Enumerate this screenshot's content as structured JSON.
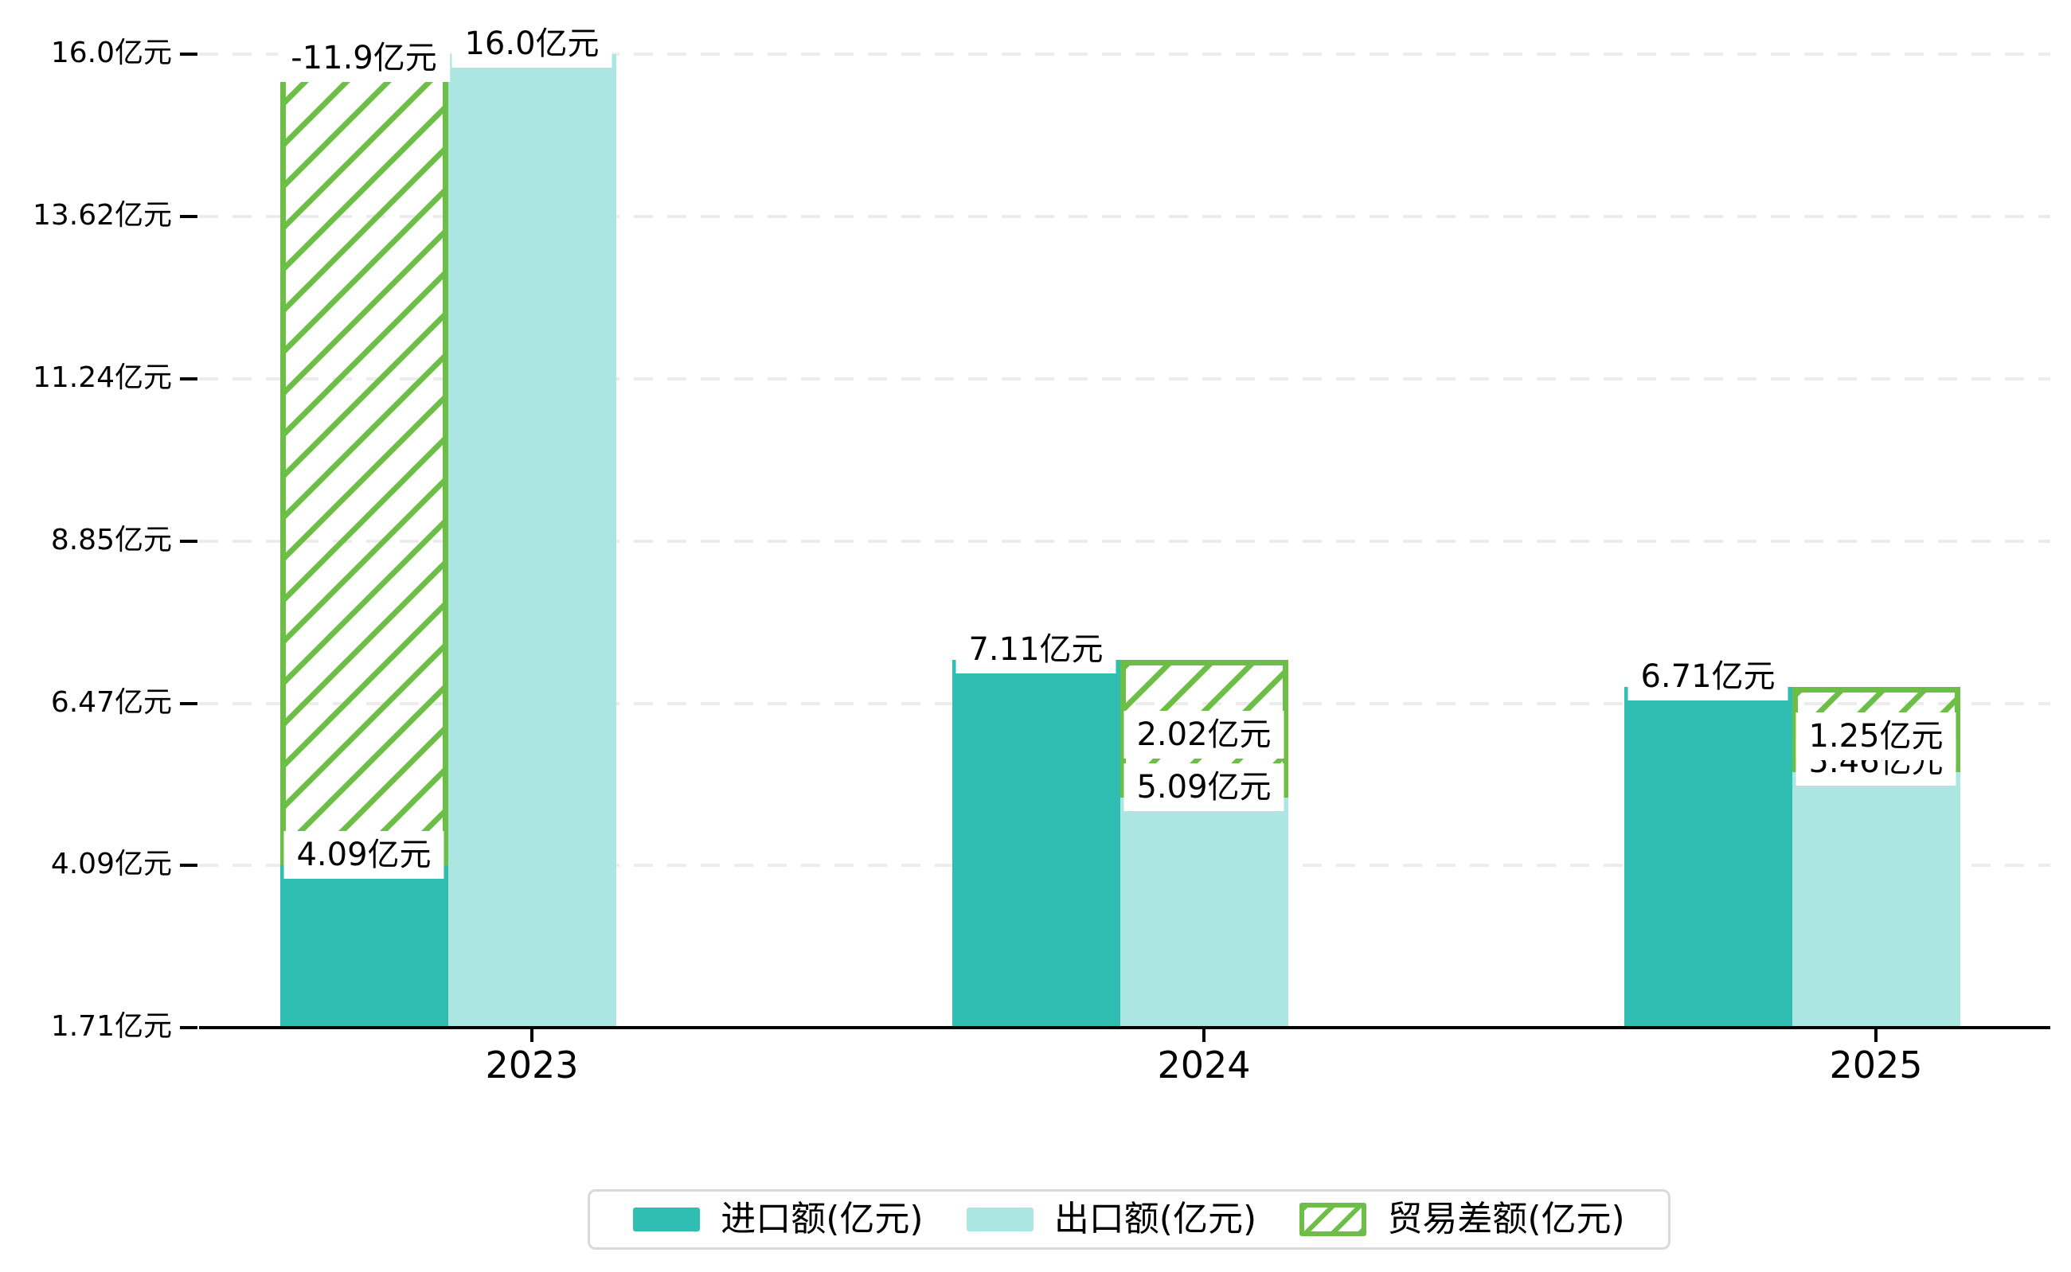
{
  "chart_data": {
    "type": "bar",
    "title": "",
    "categories": [
      "2023",
      "2024",
      "2025"
    ],
    "series": [
      {
        "name": "进口额(亿元)",
        "role": "import",
        "values": [
          4.09,
          7.11,
          6.71
        ],
        "labels": [
          "4.09亿元",
          "7.11亿元",
          "6.71亿元"
        ],
        "color": "#30beb3",
        "style": "solid"
      },
      {
        "name": "出口额(亿元)",
        "role": "export",
        "values": [
          16.0,
          5.09,
          5.46
        ],
        "labels": [
          "16.0亿元",
          "5.09亿元",
          "5.46亿元"
        ],
        "color": "#abe6e2",
        "style": "solid"
      },
      {
        "name": "贸易差额(亿元)",
        "role": "trade-balance",
        "values": [
          -11.9,
          2.02,
          1.25
        ],
        "labels": [
          "-11.9亿元",
          "2.02亿元",
          "1.25亿元"
        ],
        "color": "#6dbe46",
        "style": "hatched"
      }
    ],
    "y_axis": {
      "ticks": [
        {
          "value": 1.71,
          "label": "1.71亿元"
        },
        {
          "value": 4.09,
          "label": "4.09亿元"
        },
        {
          "value": 6.47,
          "label": "6.47亿元"
        },
        {
          "value": 8.85,
          "label": "8.85亿元"
        },
        {
          "value": 11.24,
          "label": "11.24亿元"
        },
        {
          "value": 13.62,
          "label": "13.62亿元"
        },
        {
          "value": 16.0,
          "label": "16.0亿元"
        }
      ],
      "ylim": [
        1.71,
        16.0
      ]
    },
    "grid": true,
    "legend_position": "bottom"
  },
  "colors": {
    "import": "#30beb3",
    "export": "#abe6e2",
    "balance": "#6dbe46",
    "gridline": "#ececec",
    "axis": "#000000",
    "label_background": "#ffffff",
    "legend_border": "#d9d9d9",
    "background": "#ffffff"
  }
}
